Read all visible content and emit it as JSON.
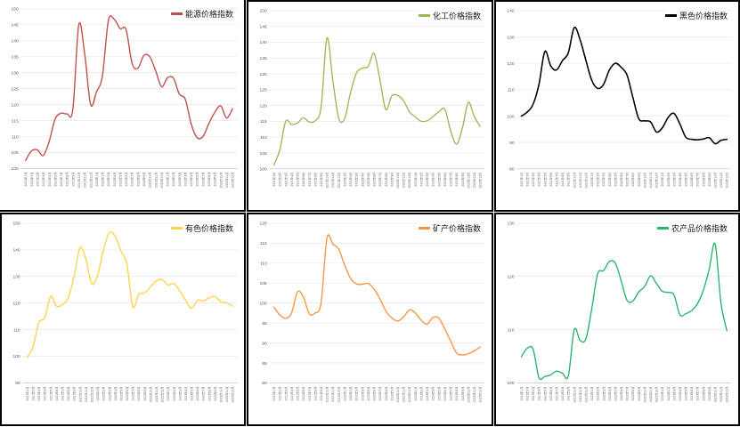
{
  "page": {
    "background": "#ffffff",
    "grid_layout": "2x3",
    "gridline_color": "#e4e4e4",
    "axis_color": "#c8c8c8",
    "tick_label_color": "#555555"
  },
  "chart_data": {
    "type": "line",
    "layout": "2x3-grid",
    "grid": true,
    "legend_position": "top-right",
    "categories": [
      "2021年1月",
      "2021年2月",
      "2021年3月",
      "2021年4月",
      "2021年5月",
      "2021年6月",
      "2021年7月",
      "2021年8月",
      "2021年9月",
      "2021年10月",
      "2021年11月",
      "2021年12月",
      "2022年1月",
      "2022年2月",
      "2022年3月",
      "2022年4月",
      "2022年5月",
      "2022年6月",
      "2022年7月",
      "2022年8月",
      "2022年9月",
      "2022年10月",
      "2022年11月",
      "2022年12月",
      "2023年1月",
      "2023年2月",
      "2023年3月",
      "2023年4月",
      "2023年5月",
      "2023年6月",
      "2023年7月",
      "2023年8月",
      "2023年9月",
      "2023年10月",
      "2023年11月",
      "2023年12月"
    ],
    "charts": [
      {
        "title": "能源价格指数",
        "color": "#C0504D",
        "ylim": [
          100,
          150
        ],
        "ystep": 5,
        "values": [
          102.5,
          105.5,
          105.8,
          104.1,
          108.5,
          115.5,
          117.3,
          117.1,
          118.5,
          145,
          136,
          120,
          124,
          129,
          146.3,
          146.7,
          143.8,
          143.5,
          133,
          131.4,
          135.4,
          135,
          130.6,
          125.6,
          128.4,
          128.3,
          123.3,
          121.7,
          114,
          109.7,
          110,
          114.1,
          117.6,
          119.6,
          115.8,
          118.7
        ]
      },
      {
        "title": "化工价格指数",
        "color": "#9BBB59",
        "ylim": [
          100,
          150
        ],
        "ystep": 5,
        "values": [
          101.2,
          106,
          115,
          114,
          114.5,
          116.1,
          114.8,
          115.2,
          119.4,
          141.3,
          128,
          116,
          115.8,
          124,
          130.2,
          131.8,
          132.3,
          136.5,
          128,
          118.7,
          123,
          123.2,
          121.5,
          118,
          116.4,
          115,
          115.2,
          116.5,
          118,
          118.8,
          112,
          107.8,
          113,
          121,
          116.5,
          113.4
        ]
      },
      {
        "title": "黑色价格指数",
        "color": "#000000",
        "ylim": [
          80,
          140
        ],
        "ystep": 10,
        "values": [
          100,
          101.5,
          104.5,
          112,
          124.5,
          119,
          117.5,
          121,
          124,
          133.5,
          129,
          121,
          113.5,
          110.5,
          112,
          117.5,
          120,
          118.5,
          115.5,
          107,
          99,
          98.2,
          97.8,
          94,
          95.5,
          99.5,
          101,
          97,
          92,
          91.2,
          91,
          91.3,
          91.8,
          89.5,
          90.8,
          91.2
        ]
      },
      {
        "title": "有色价格指数",
        "color": "#FFD34D",
        "ylim": [
          90,
          150
        ],
        "ystep": 10,
        "values": [
          99.5,
          103.5,
          112.7,
          114.4,
          122.5,
          118.8,
          119.4,
          122,
          130,
          140.8,
          136.6,
          127.2,
          130.5,
          140,
          146.5,
          145,
          139.4,
          134.6,
          118.6,
          123.3,
          123.8,
          126,
          128.3,
          128.8,
          126.8,
          127.3,
          124.5,
          121,
          118,
          121,
          120.8,
          122,
          122.5,
          120.5,
          120,
          118.8
        ]
      },
      {
        "title": "矿产价格指数",
        "color": "#F79646",
        "ylim": [
          80,
          120
        ],
        "ystep": 5,
        "values": [
          99,
          97,
          96.2,
          97.5,
          102.8,
          101.5,
          97.3,
          97.5,
          100,
          116.2,
          114.8,
          113.5,
          109.5,
          106.2,
          104.8,
          104.7,
          104.9,
          103.5,
          101,
          98,
          96.3,
          95.5,
          96.5,
          98.3,
          97.5,
          95.7,
          94.7,
          96.4,
          96.2,
          93.5,
          90.5,
          87.5,
          87,
          87.3,
          88,
          89
        ]
      },
      {
        "title": "农产品价格指数",
        "color": "#29B56B",
        "ylim": [
          100,
          130
        ],
        "ystep": 10,
        "values": [
          104.9,
          106.5,
          106.3,
          101,
          101.2,
          101.5,
          102.2,
          101.8,
          101.3,
          110,
          108,
          108.3,
          114,
          120.5,
          121.1,
          122.8,
          122.5,
          119.2,
          115.5,
          115.4,
          117.1,
          118.1,
          120.1,
          118.7,
          117.2,
          117,
          116.5,
          112.8,
          113,
          113.6,
          114.9,
          117.4,
          121.4,
          126.1,
          115,
          109.8
        ]
      }
    ]
  }
}
